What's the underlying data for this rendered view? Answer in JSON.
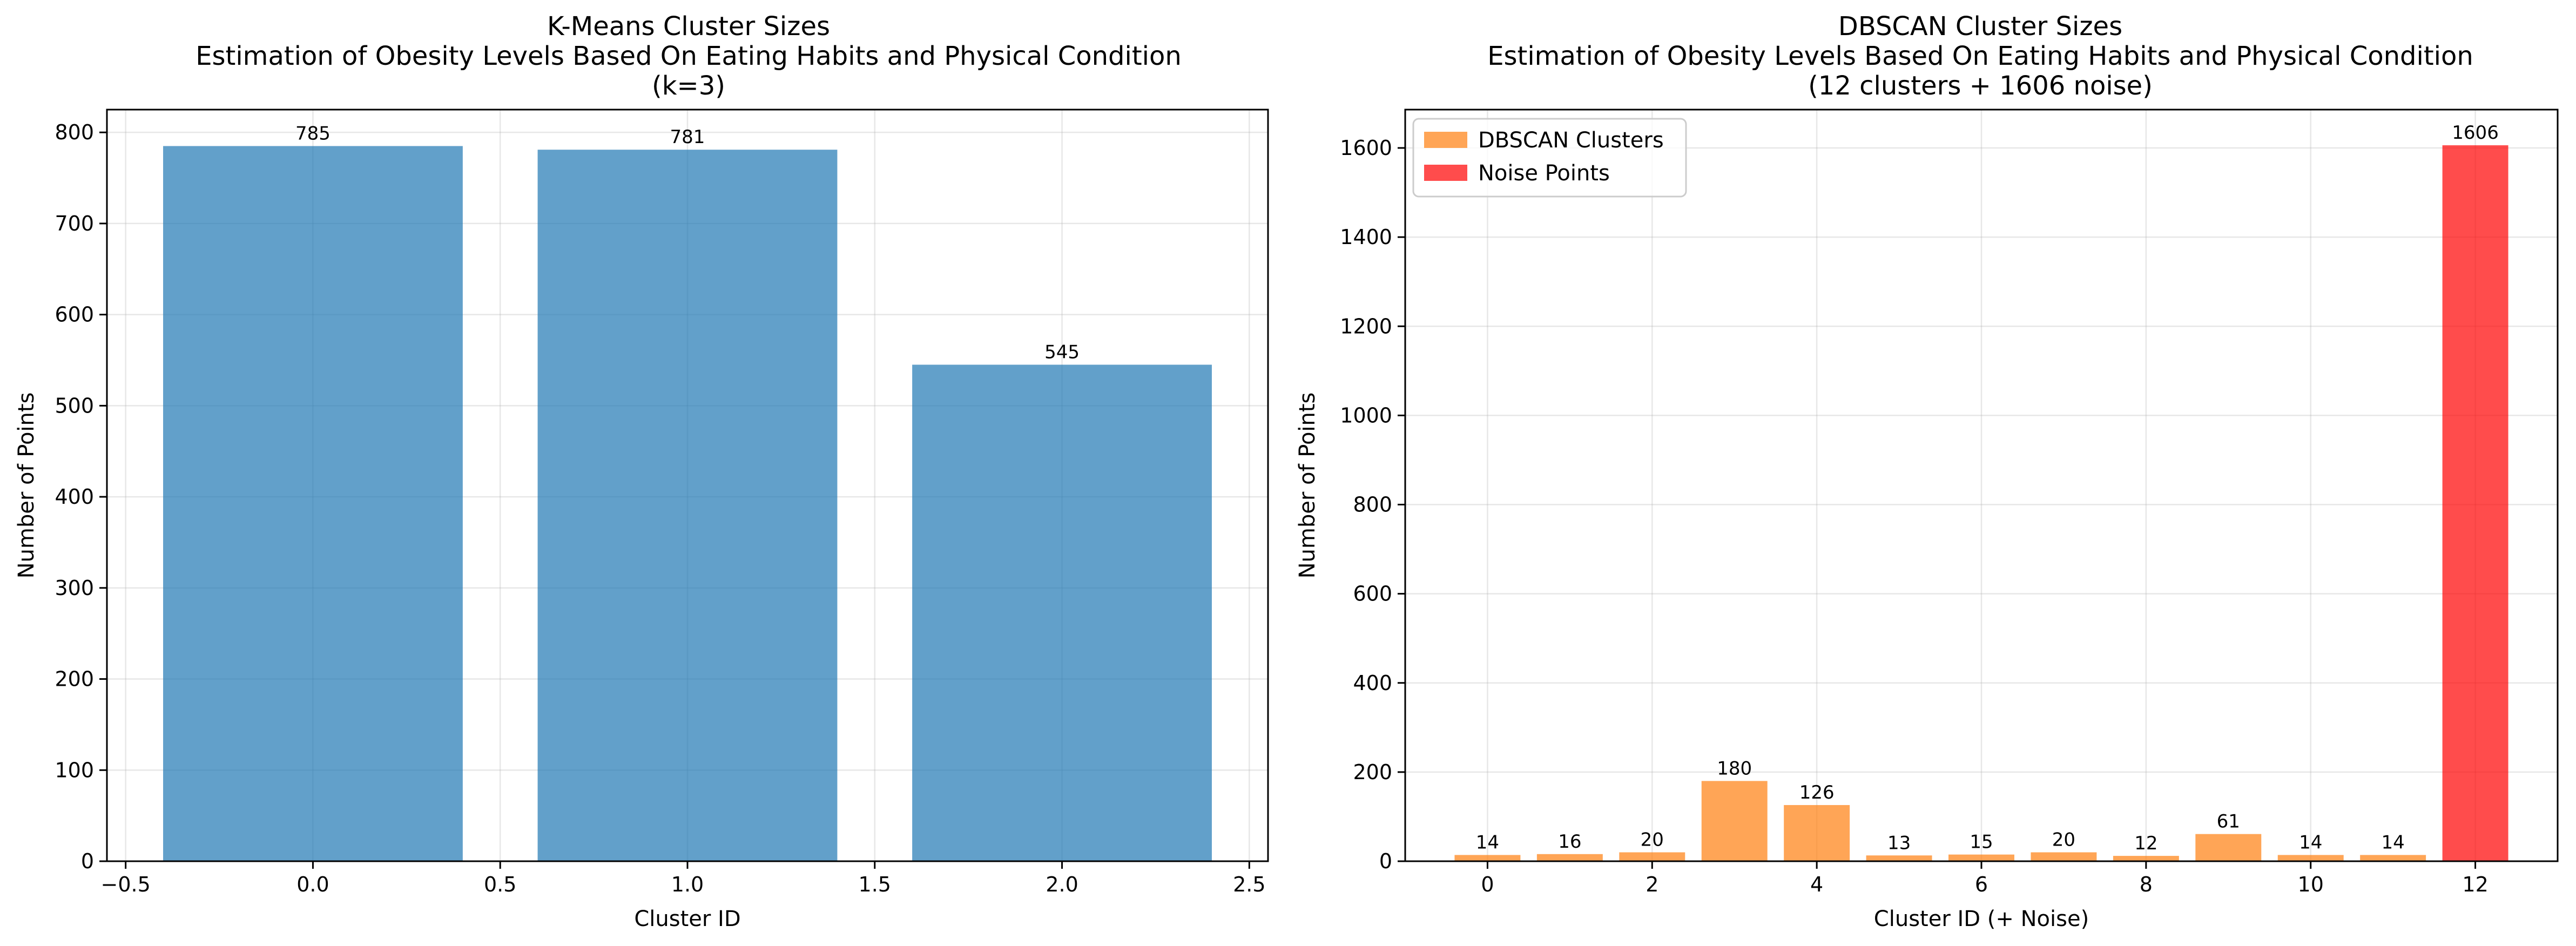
{
  "chart_data": [
    {
      "type": "bar",
      "title_lines": [
        "K-Means Cluster Sizes",
        "Estimation of Obesity Levels Based On Eating Habits and Physical Condition",
        "(k=3)"
      ],
      "xlabel": "Cluster ID",
      "ylabel": "Number of Points",
      "x": [
        0,
        1,
        2
      ],
      "values": [
        785,
        781,
        545
      ],
      "data_labels": [
        "785",
        "781",
        "545"
      ],
      "bar_width": 0.8,
      "xlim": [
        -0.55,
        2.55
      ],
      "ylim": [
        0,
        825
      ],
      "xticks": [
        -0.5,
        0.0,
        0.5,
        1.0,
        1.5,
        2.0,
        2.5
      ],
      "xtick_labels": [
        "−0.5",
        "0.0",
        "0.5",
        "1.0",
        "1.5",
        "2.0",
        "2.5"
      ],
      "yticks": [
        0,
        100,
        200,
        300,
        400,
        500,
        600,
        700,
        800
      ],
      "ytick_labels": [
        "0",
        "100",
        "200",
        "300",
        "400",
        "500",
        "600",
        "700",
        "800"
      ],
      "grid": true,
      "color": "#1f77b4",
      "opacity": 0.7
    },
    {
      "type": "bar",
      "title_lines": [
        "DBSCAN Cluster Sizes",
        "Estimation of Obesity Levels Based On Eating Habits and Physical Condition",
        "(12 clusters + 1606 noise)"
      ],
      "xlabel": "Cluster ID (+ Noise)",
      "ylabel": "Number of Points",
      "series": [
        {
          "name": "DBSCAN Clusters",
          "color": "#ff7f0e",
          "x": [
            0,
            1,
            2,
            3,
            4,
            5,
            6,
            7,
            8,
            9,
            10,
            11
          ],
          "values": [
            14,
            16,
            20,
            180,
            126,
            13,
            15,
            20,
            12,
            61,
            14,
            14
          ],
          "data_labels": [
            "14",
            "16",
            "20",
            "180",
            "126",
            "13",
            "15",
            "20",
            "12",
            "61",
            "14",
            "14"
          ]
        },
        {
          "name": "Noise Points",
          "color": "#ff0000",
          "x": [
            12
          ],
          "values": [
            1606
          ],
          "data_labels": [
            "1606"
          ]
        }
      ],
      "bar_width": 0.8,
      "xlim": [
        -1.0,
        13.0
      ],
      "ylim": [
        0,
        1686
      ],
      "xticks": [
        0,
        2,
        4,
        6,
        8,
        10,
        12
      ],
      "xtick_labels": [
        "0",
        "2",
        "4",
        "6",
        "8",
        "10",
        "12"
      ],
      "yticks": [
        0,
        200,
        400,
        600,
        800,
        1000,
        1200,
        1400,
        1600
      ],
      "ytick_labels": [
        "0",
        "200",
        "400",
        "600",
        "800",
        "1000",
        "1200",
        "1400",
        "1600"
      ],
      "grid": true,
      "legend": "top-left",
      "opacity": 0.7
    }
  ]
}
